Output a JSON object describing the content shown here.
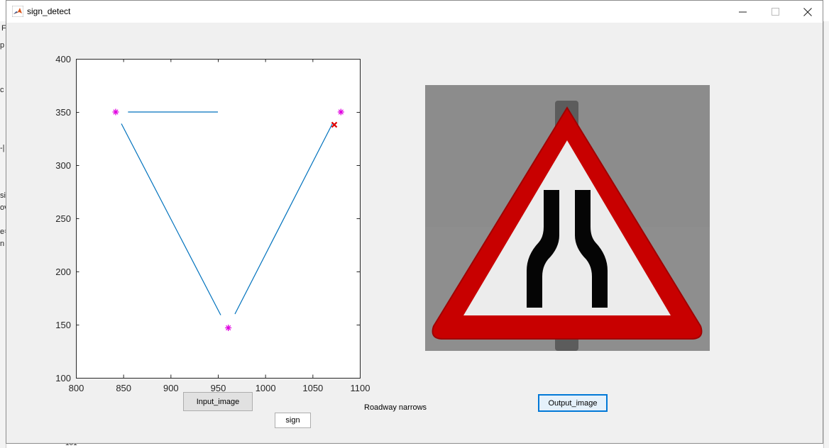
{
  "window": {
    "title": "sign_detect",
    "controls": {
      "minimize": "—",
      "maximize": "☐",
      "close": "✕"
    }
  },
  "background": {
    "left_fragments": [
      "F",
      "p",
      "c",
      "-|",
      "si",
      "ov",
      "e=",
      "n"
    ],
    "bottom_fragment": "101"
  },
  "chart_data": {
    "type": "line",
    "xlim": [
      800,
      1100
    ],
    "ylim": [
      100,
      400
    ],
    "xticks": [
      "800",
      "850",
      "900",
      "950",
      "1000",
      "1050",
      "1100"
    ],
    "yticks": [
      "100",
      "150",
      "200",
      "250",
      "300",
      "350",
      "400"
    ],
    "grid": false,
    "line_color": "#0072bd",
    "segments": [
      {
        "x": [
          855,
          950
        ],
        "y": [
          350,
          350
        ]
      },
      {
        "x": [
          848,
          953
        ],
        "y": [
          339,
          159
        ]
      },
      {
        "x": [
          968,
          1071
        ],
        "y": [
          160,
          339
        ]
      }
    ],
    "star_markers": {
      "color": "#e000e0",
      "points": [
        [
          842,
          350
        ],
        [
          1080,
          350
        ],
        [
          961,
          147
        ]
      ]
    },
    "x_markers": {
      "color": "#e00000",
      "points": [
        [
          1073,
          338
        ]
      ]
    }
  },
  "buttons": {
    "input_image": "Input_image",
    "sign": "sign",
    "output_image": "Output_image"
  },
  "result_label": "Roadway narrows",
  "colors": {
    "sign_red": "#c80000",
    "sign_bg": "#8e8e8e"
  }
}
